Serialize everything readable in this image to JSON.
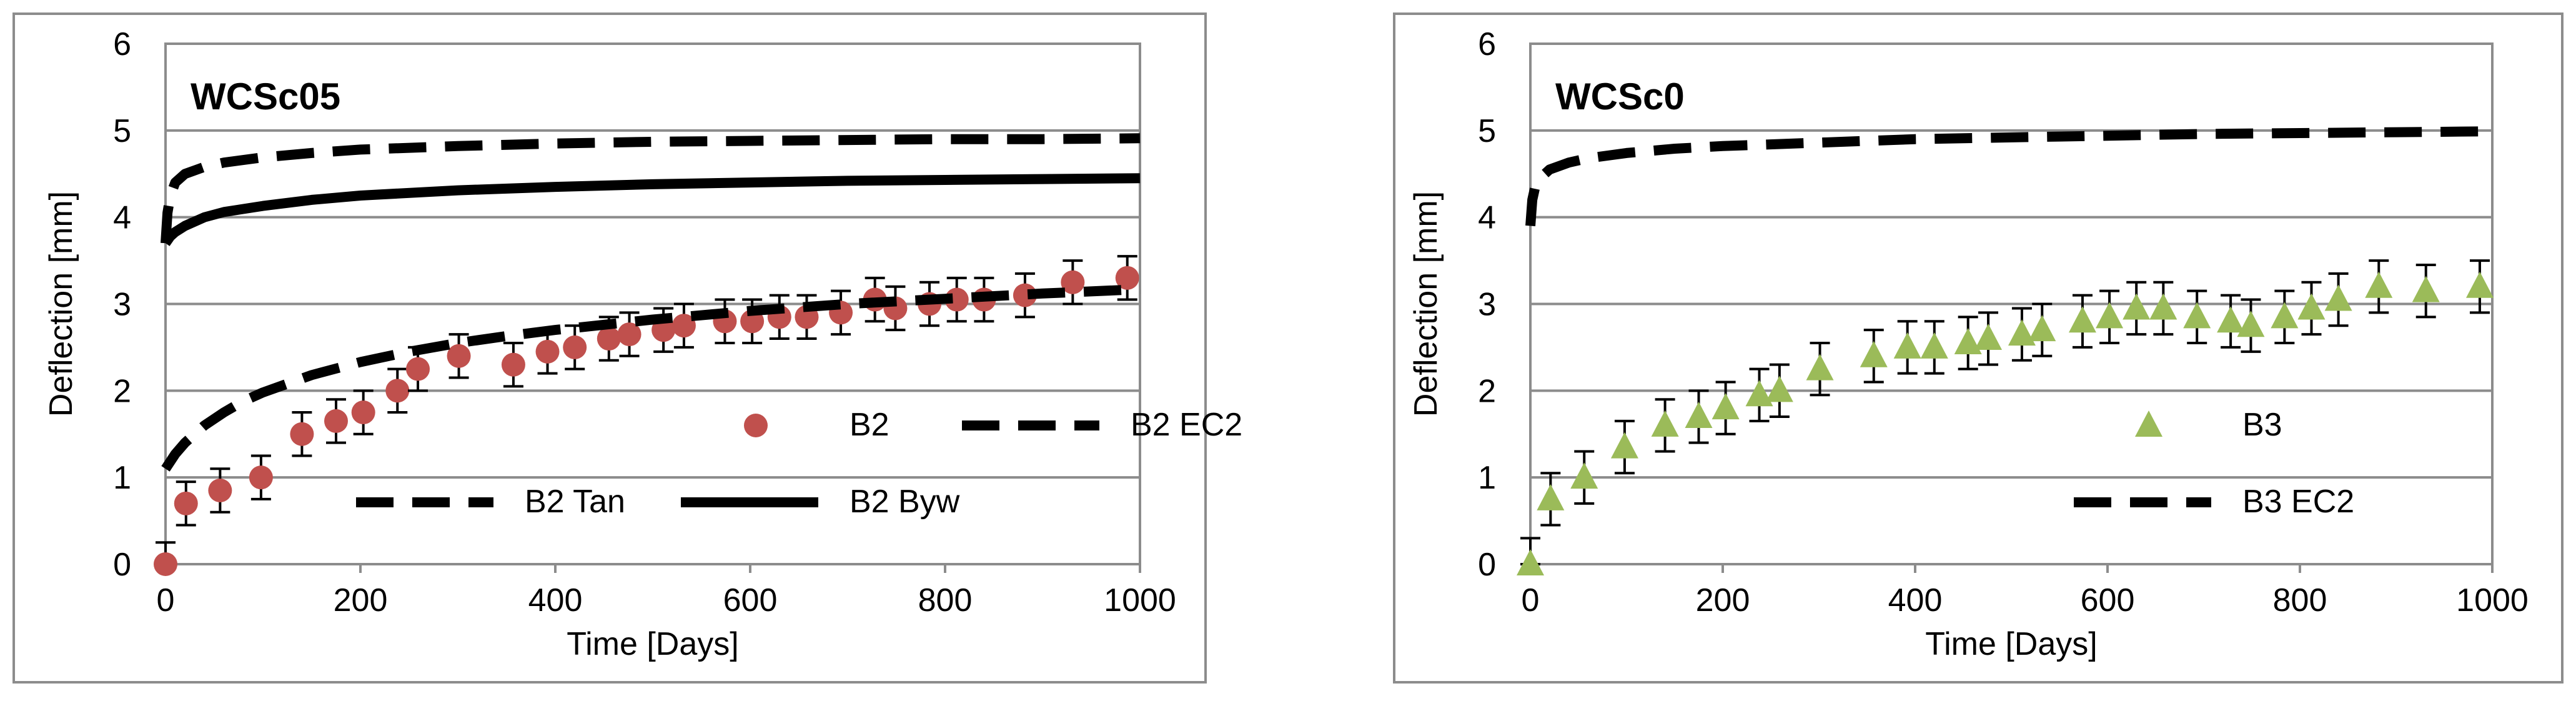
{
  "chart_data": [
    {
      "type": "scatter",
      "title": "WCSc05",
      "xlabel": "Time [Days]",
      "ylabel": "Deflection [mm]",
      "xlim": [
        0,
        1000
      ],
      "ylim": [
        0,
        6
      ],
      "xticks": [
        "0",
        "200",
        "400",
        "600",
        "800",
        "1000"
      ],
      "yticks": [
        "0",
        "1",
        "2",
        "3",
        "4",
        "5",
        "6"
      ],
      "grid": "horizontal",
      "legend_position": "lower-right",
      "series": [
        {
          "name": "B2",
          "kind": "markers",
          "marker": "circle",
          "color": "#c0504d",
          "error_bar": 0.25,
          "x": [
            0,
            21,
            56,
            98,
            140,
            175,
            203,
            238,
            259,
            301,
            357,
            392,
            420,
            455,
            476,
            511,
            532,
            574,
            602,
            630,
            658,
            693,
            728,
            749,
            784,
            812,
            840,
            882,
            931,
            987
          ],
          "y": [
            0,
            0.7,
            0.85,
            1.0,
            1.5,
            1.65,
            1.75,
            2.0,
            2.25,
            2.4,
            2.3,
            2.45,
            2.5,
            2.6,
            2.65,
            2.7,
            2.75,
            2.8,
            2.8,
            2.85,
            2.85,
            2.9,
            3.05,
            2.95,
            3.0,
            3.05,
            3.05,
            3.1,
            3.25,
            3.3
          ]
        },
        {
          "name": "B2 EC2",
          "kind": "line",
          "style": "dashed",
          "color": "#000000",
          "x": [
            0,
            10,
            20,
            40,
            60,
            80,
            100,
            150,
            200,
            250,
            300,
            350,
            400,
            500,
            600,
            700,
            800,
            900,
            1000
          ],
          "y": [
            1.1,
            1.27,
            1.4,
            1.6,
            1.75,
            1.88,
            1.98,
            2.18,
            2.33,
            2.45,
            2.55,
            2.63,
            2.7,
            2.82,
            2.92,
            3.0,
            3.06,
            3.12,
            3.17
          ]
        },
        {
          "name": "B2 Tan",
          "kind": "line",
          "style": "dashed",
          "color": "#000000",
          "x": [
            0,
            2,
            5,
            10,
            20,
            40,
            60,
            100,
            150,
            200,
            300,
            400,
            500,
            600,
            700,
            800,
            900,
            1000
          ],
          "y": [
            3.7,
            4.05,
            4.25,
            4.4,
            4.5,
            4.58,
            4.63,
            4.69,
            4.74,
            4.78,
            4.82,
            4.85,
            4.87,
            4.88,
            4.89,
            4.9,
            4.9,
            4.91
          ]
        },
        {
          "name": "B2 Byw",
          "kind": "line",
          "style": "solid",
          "color": "#000000",
          "x": [
            0,
            5,
            10,
            20,
            40,
            60,
            100,
            150,
            200,
            300,
            400,
            500,
            600,
            700,
            800,
            900,
            1000
          ],
          "y": [
            3.7,
            3.78,
            3.83,
            3.9,
            4.0,
            4.06,
            4.13,
            4.2,
            4.25,
            4.31,
            4.35,
            4.38,
            4.4,
            4.42,
            4.43,
            4.44,
            4.45
          ]
        }
      ]
    },
    {
      "type": "scatter",
      "title": "WCSc0",
      "xlabel": "Time [Days]",
      "ylabel": "Deflection [mm]",
      "xlim": [
        0,
        1000
      ],
      "ylim": [
        0,
        6
      ],
      "xticks": [
        "0",
        "200",
        "400",
        "600",
        "800",
        "1000"
      ],
      "yticks": [
        "0",
        "1",
        "2",
        "3",
        "4",
        "5",
        "6"
      ],
      "grid": "horizontal",
      "legend_position": "lower-right",
      "series": [
        {
          "name": "B3",
          "kind": "markers",
          "marker": "triangle",
          "color": "#9bbb59",
          "error_bar": 0.3,
          "x": [
            0,
            21,
            56,
            98,
            140,
            175,
            203,
            238,
            259,
            301,
            357,
            392,
            420,
            455,
            476,
            511,
            532,
            574,
            602,
            630,
            658,
            693,
            728,
            749,
            784,
            812,
            840,
            882,
            931,
            987
          ],
          "y": [
            0,
            0.75,
            1.0,
            1.35,
            1.6,
            1.7,
            1.8,
            1.95,
            2.0,
            2.25,
            2.4,
            2.5,
            2.5,
            2.55,
            2.6,
            2.65,
            2.7,
            2.8,
            2.85,
            2.95,
            2.95,
            2.85,
            2.8,
            2.75,
            2.85,
            2.95,
            3.05,
            3.2,
            3.15,
            3.2
          ]
        },
        {
          "name": "B3 EC2",
          "kind": "line",
          "style": "dashed",
          "color": "#000000",
          "x": [
            0,
            2,
            5,
            10,
            20,
            40,
            60,
            100,
            150,
            200,
            300,
            400,
            500,
            600,
            700,
            800,
            900,
            1000
          ],
          "y": [
            3.9,
            4.2,
            4.35,
            4.45,
            4.55,
            4.63,
            4.68,
            4.74,
            4.79,
            4.82,
            4.86,
            4.9,
            4.92,
            4.94,
            4.96,
            4.97,
            4.98,
            4.99
          ]
        }
      ]
    }
  ]
}
